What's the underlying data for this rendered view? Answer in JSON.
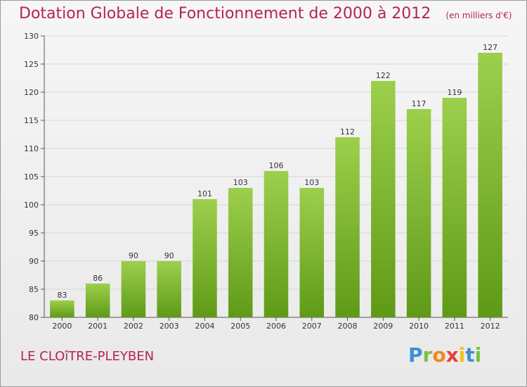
{
  "header": {
    "title": "Dotation Globale de Fonctionnement de 2000 à 2012",
    "unit_note": "(en milliers d'€)"
  },
  "footer": {
    "town": "LE CLOîTRE-PLEYBEN",
    "logo_text": "Proxiti"
  },
  "colors": {
    "title": "#b5225c",
    "bar_top": "#9ccf4c",
    "bar_bottom": "#5f9a17",
    "grid": "#d6d6d6"
  },
  "chart_data": {
    "type": "bar",
    "categories": [
      "2000",
      "2001",
      "2002",
      "2003",
      "2004",
      "2005",
      "2006",
      "2007",
      "2008",
      "2009",
      "2010",
      "2011",
      "2012"
    ],
    "values": [
      83,
      86,
      90,
      90,
      101,
      103,
      106,
      103,
      112,
      122,
      117,
      119,
      127
    ],
    "data_labels": [
      "83",
      "86",
      "90",
      "90",
      "101",
      "103",
      "106",
      "103",
      "112",
      "122",
      "117",
      "119",
      "127"
    ],
    "ylim": [
      80,
      130
    ],
    "yticks": [
      80,
      85,
      90,
      95,
      100,
      105,
      110,
      115,
      120,
      125,
      130
    ],
    "grid": true,
    "legend": "none"
  }
}
